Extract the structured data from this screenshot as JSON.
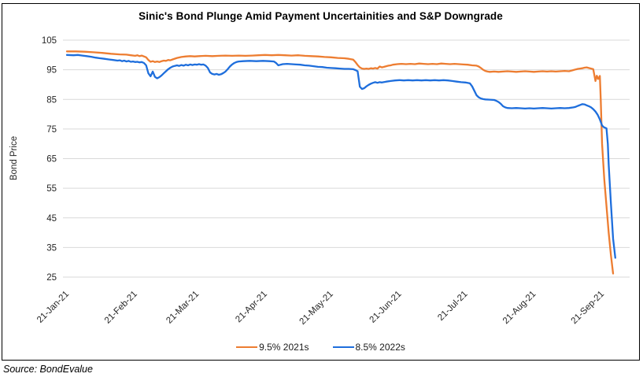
{
  "chart": {
    "source_note": "Source: BondEvalue",
    "colors": {
      "gridline": "#D9D9D9",
      "frame_border": "#000000",
      "axis_text": "#262626",
      "title_text": "#000000"
    }
  },
  "chart_data": {
    "type": "line",
    "title": "Sinic's Bond Plunge Amid Payment Uncertainities and S&P Downgrade",
    "xlabel": "",
    "ylabel": "Bond Price",
    "ylim": [
      25,
      105
    ],
    "yticks": [
      105,
      95,
      85,
      75,
      65,
      55,
      45,
      35,
      25
    ],
    "grid": "horizontal-only",
    "legend_position": "bottom-center",
    "x_axis": {
      "unit": "days since 21-Jan-21",
      "tick_labels": [
        "21-Jan-21",
        "21-Feb-21",
        "21-Mar-21",
        "21-Apr-21",
        "21-May-21",
        "21-Jun-21",
        "21-Jul-21",
        "21-Aug-21",
        "21-Sep-21"
      ],
      "tick_day_offsets": [
        0,
        31,
        59,
        90,
        120,
        151,
        181,
        212,
        243
      ],
      "domain_days": [
        0,
        249
      ]
    },
    "series": [
      {
        "name": "9.5% 2021s",
        "color": "#ED7D31",
        "points_day_price": [
          [
            0,
            101.2
          ],
          [
            4,
            101.2
          ],
          [
            8,
            101.1
          ],
          [
            12,
            100.9
          ],
          [
            16,
            100.7
          ],
          [
            20,
            100.4
          ],
          [
            24,
            100.2
          ],
          [
            27,
            100.1
          ],
          [
            29,
            99.9
          ],
          [
            31,
            99.7
          ],
          [
            32,
            99.9
          ],
          [
            33,
            99.6
          ],
          [
            34,
            99.8
          ],
          [
            35,
            99.5
          ],
          [
            36,
            99.2
          ],
          [
            37,
            98.3
          ],
          [
            38,
            97.7
          ],
          [
            39,
            97.9
          ],
          [
            40,
            97.6
          ],
          [
            41,
            97.8
          ],
          [
            42,
            97.6
          ],
          [
            43,
            97.9
          ],
          [
            44,
            98.1
          ],
          [
            45,
            98.0
          ],
          [
            46,
            98.3
          ],
          [
            47,
            98.2
          ],
          [
            48,
            98.5
          ],
          [
            50,
            99.0
          ],
          [
            52,
            99.3
          ],
          [
            54,
            99.5
          ],
          [
            56,
            99.6
          ],
          [
            58,
            99.5
          ],
          [
            60,
            99.6
          ],
          [
            63,
            99.7
          ],
          [
            66,
            99.6
          ],
          [
            69,
            99.7
          ],
          [
            72,
            99.8
          ],
          [
            75,
            99.7
          ],
          [
            78,
            99.8
          ],
          [
            81,
            99.7
          ],
          [
            84,
            99.8
          ],
          [
            87,
            99.9
          ],
          [
            90,
            100.0
          ],
          [
            93,
            99.9
          ],
          [
            96,
            100.0
          ],
          [
            99,
            99.9
          ],
          [
            102,
            99.8
          ],
          [
            105,
            99.9
          ],
          [
            108,
            99.7
          ],
          [
            111,
            99.6
          ],
          [
            114,
            99.5
          ],
          [
            117,
            99.3
          ],
          [
            120,
            99.2
          ],
          [
            123,
            99.0
          ],
          [
            126,
            98.9
          ],
          [
            128,
            98.7
          ],
          [
            130,
            98.4
          ],
          [
            131,
            97.6
          ],
          [
            132,
            96.6
          ],
          [
            133,
            95.8
          ],
          [
            134,
            95.4
          ],
          [
            135,
            95.3
          ],
          [
            136,
            95.4
          ],
          [
            137,
            95.3
          ],
          [
            138,
            95.5
          ],
          [
            139,
            95.4
          ],
          [
            140,
            95.6
          ],
          [
            141,
            95.4
          ],
          [
            142,
            96.1
          ],
          [
            143,
            95.8
          ],
          [
            144,
            96.0
          ],
          [
            145,
            96.2
          ],
          [
            146,
            96.4
          ],
          [
            147,
            96.5
          ],
          [
            148,
            96.7
          ],
          [
            150,
            96.9
          ],
          [
            152,
            97.0
          ],
          [
            154,
            96.9
          ],
          [
            156,
            97.0
          ],
          [
            158,
            96.9
          ],
          [
            160,
            97.1
          ],
          [
            162,
            97.0
          ],
          [
            164,
            96.9
          ],
          [
            166,
            97.0
          ],
          [
            168,
            96.9
          ],
          [
            170,
            97.1
          ],
          [
            172,
            97.0
          ],
          [
            174,
            96.9
          ],
          [
            176,
            97.0
          ],
          [
            178,
            96.9
          ],
          [
            180,
            96.8
          ],
          [
            182,
            96.7
          ],
          [
            184,
            96.5
          ],
          [
            186,
            96.4
          ],
          [
            187,
            96.1
          ],
          [
            188,
            95.6
          ],
          [
            189,
            95.0
          ],
          [
            190,
            94.6
          ],
          [
            191,
            94.4
          ],
          [
            192,
            94.3
          ],
          [
            194,
            94.4
          ],
          [
            196,
            94.3
          ],
          [
            198,
            94.4
          ],
          [
            200,
            94.5
          ],
          [
            202,
            94.4
          ],
          [
            204,
            94.3
          ],
          [
            206,
            94.4
          ],
          [
            208,
            94.5
          ],
          [
            210,
            94.4
          ],
          [
            212,
            94.3
          ],
          [
            214,
            94.4
          ],
          [
            216,
            94.5
          ],
          [
            218,
            94.4
          ],
          [
            220,
            94.5
          ],
          [
            222,
            94.4
          ],
          [
            224,
            94.5
          ],
          [
            226,
            94.6
          ],
          [
            228,
            94.5
          ],
          [
            229,
            94.7
          ],
          [
            230,
            94.9
          ],
          [
            231,
            95.1
          ],
          [
            232,
            95.3
          ],
          [
            233,
            95.4
          ],
          [
            234,
            95.5
          ],
          [
            235,
            95.7
          ],
          [
            236,
            95.8
          ],
          [
            237,
            95.6
          ],
          [
            238,
            95.4
          ],
          [
            239,
            95.2
          ],
          [
            240,
            91.2
          ],
          [
            240.6,
            93.0
          ],
          [
            241.2,
            91.9
          ],
          [
            242,
            92.9
          ],
          [
            242.4,
            85.0
          ],
          [
            243,
            70.0
          ],
          [
            244,
            58.0
          ],
          [
            245,
            49.0
          ],
          [
            246,
            40.0
          ],
          [
            247,
            32.5
          ],
          [
            248,
            26.2
          ]
        ]
      },
      {
        "name": "8.5% 2022s",
        "color": "#1E6EDC",
        "points_day_price": [
          [
            0,
            100.0
          ],
          [
            3,
            99.9
          ],
          [
            5,
            100.0
          ],
          [
            7,
            99.8
          ],
          [
            9,
            99.6
          ],
          [
            11,
            99.4
          ],
          [
            13,
            99.1
          ],
          [
            15,
            98.9
          ],
          [
            17,
            98.7
          ],
          [
            19,
            98.5
          ],
          [
            21,
            98.3
          ],
          [
            23,
            98.1
          ],
          [
            24,
            98.2
          ],
          [
            25,
            97.9
          ],
          [
            26,
            98.1
          ],
          [
            27,
            97.8
          ],
          [
            28,
            98.0
          ],
          [
            29,
            97.7
          ],
          [
            30,
            97.8
          ],
          [
            31,
            97.6
          ],
          [
            32,
            97.7
          ],
          [
            33,
            97.5
          ],
          [
            34,
            97.6
          ],
          [
            35,
            97.3
          ],
          [
            36,
            96.5
          ],
          [
            37,
            93.8
          ],
          [
            38,
            92.8
          ],
          [
            39,
            94.4
          ],
          [
            40,
            92.6
          ],
          [
            41,
            92.1
          ],
          [
            42,
            92.5
          ],
          [
            43,
            93.1
          ],
          [
            44,
            93.8
          ],
          [
            45,
            94.5
          ],
          [
            46,
            95.2
          ],
          [
            47,
            95.7
          ],
          [
            48,
            96.1
          ],
          [
            49,
            96.3
          ],
          [
            50,
            96.5
          ],
          [
            51,
            96.3
          ],
          [
            52,
            96.6
          ],
          [
            53,
            96.4
          ],
          [
            54,
            96.7
          ],
          [
            55,
            96.5
          ],
          [
            56,
            96.8
          ],
          [
            57,
            96.6
          ],
          [
            58,
            96.8
          ],
          [
            59,
            96.7
          ],
          [
            60,
            96.9
          ],
          [
            61,
            96.7
          ],
          [
            62,
            96.8
          ],
          [
            63,
            96.4
          ],
          [
            64,
            95.6
          ],
          [
            65,
            94.1
          ],
          [
            66,
            93.6
          ],
          [
            67,
            93.4
          ],
          [
            68,
            93.6
          ],
          [
            69,
            93.3
          ],
          [
            70,
            93.5
          ],
          [
            71,
            93.9
          ],
          [
            72,
            94.4
          ],
          [
            73,
            95.2
          ],
          [
            74,
            96.1
          ],
          [
            75,
            96.8
          ],
          [
            76,
            97.3
          ],
          [
            77,
            97.6
          ],
          [
            78,
            97.8
          ],
          [
            80,
            97.9
          ],
          [
            83,
            98.0
          ],
          [
            86,
            97.9
          ],
          [
            89,
            98.0
          ],
          [
            92,
            97.9
          ],
          [
            94,
            97.8
          ],
          [
            95,
            97.3
          ],
          [
            96,
            96.5
          ],
          [
            97,
            96.7
          ],
          [
            98,
            96.9
          ],
          [
            100,
            97.0
          ],
          [
            102,
            96.9
          ],
          [
            104,
            96.8
          ],
          [
            106,
            96.7
          ],
          [
            108,
            96.5
          ],
          [
            110,
            96.4
          ],
          [
            112,
            96.2
          ],
          [
            114,
            96.0
          ],
          [
            116,
            95.9
          ],
          [
            118,
            95.7
          ],
          [
            120,
            95.6
          ],
          [
            122,
            95.5
          ],
          [
            124,
            95.4
          ],
          [
            126,
            95.3
          ],
          [
            128,
            95.3
          ],
          [
            130,
            95.2
          ],
          [
            131,
            94.9
          ],
          [
            132,
            94.5
          ],
          [
            133,
            89.3
          ],
          [
            134,
            88.5
          ],
          [
            135,
            88.8
          ],
          [
            136,
            89.4
          ],
          [
            137,
            89.9
          ],
          [
            138,
            90.3
          ],
          [
            139,
            90.6
          ],
          [
            140,
            90.8
          ],
          [
            141,
            90.6
          ],
          [
            142,
            90.8
          ],
          [
            143,
            90.7
          ],
          [
            145,
            91.0
          ],
          [
            147,
            91.2
          ],
          [
            149,
            91.4
          ],
          [
            151,
            91.5
          ],
          [
            153,
            91.4
          ],
          [
            155,
            91.5
          ],
          [
            157,
            91.4
          ],
          [
            159,
            91.5
          ],
          [
            161,
            91.4
          ],
          [
            163,
            91.5
          ],
          [
            165,
            91.4
          ],
          [
            167,
            91.5
          ],
          [
            169,
            91.4
          ],
          [
            171,
            91.5
          ],
          [
            173,
            91.4
          ],
          [
            175,
            91.2
          ],
          [
            177,
            91.0
          ],
          [
            179,
            90.8
          ],
          [
            181,
            90.7
          ],
          [
            183,
            90.4
          ],
          [
            184,
            89.4
          ],
          [
            185,
            87.9
          ],
          [
            186,
            86.4
          ],
          [
            187,
            85.7
          ],
          [
            188,
            85.3
          ],
          [
            189,
            85.1
          ],
          [
            190,
            85.0
          ],
          [
            192,
            84.9
          ],
          [
            194,
            84.8
          ],
          [
            195,
            84.5
          ],
          [
            196,
            84.1
          ],
          [
            197,
            83.5
          ],
          [
            198,
            82.7
          ],
          [
            199,
            82.3
          ],
          [
            200,
            82.1
          ],
          [
            202,
            82.0
          ],
          [
            204,
            82.1
          ],
          [
            206,
            82.0
          ],
          [
            208,
            81.9
          ],
          [
            210,
            82.0
          ],
          [
            212,
            81.9
          ],
          [
            214,
            82.0
          ],
          [
            216,
            82.1
          ],
          [
            218,
            82.0
          ],
          [
            220,
            81.9
          ],
          [
            222,
            82.0
          ],
          [
            224,
            82.1
          ],
          [
            226,
            82.0
          ],
          [
            228,
            82.1
          ],
          [
            230,
            82.3
          ],
          [
            231,
            82.5
          ],
          [
            232,
            82.8
          ],
          [
            233,
            83.1
          ],
          [
            234,
            83.4
          ],
          [
            235,
            83.3
          ],
          [
            236,
            83.0
          ],
          [
            237,
            82.7
          ],
          [
            238,
            82.3
          ],
          [
            239,
            81.7
          ],
          [
            240,
            80.9
          ],
          [
            241,
            79.8
          ],
          [
            242,
            78.2
          ],
          [
            243,
            76.2
          ],
          [
            243.8,
            75.6
          ],
          [
            245,
            75.2
          ],
          [
            245.6,
            70.0
          ],
          [
            246,
            63.0
          ],
          [
            247,
            50.0
          ],
          [
            248,
            38.0
          ],
          [
            249,
            31.5
          ]
        ]
      }
    ]
  }
}
